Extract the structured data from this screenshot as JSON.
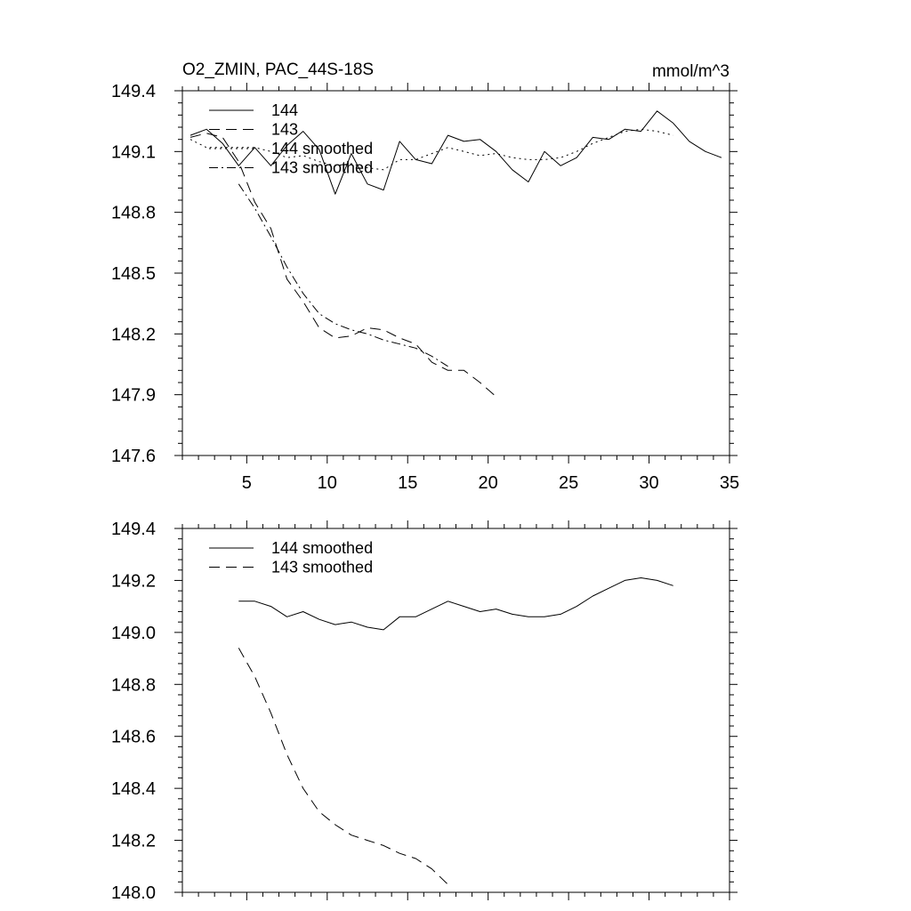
{
  "chart_data": [
    {
      "type": "line",
      "title": "O2_ZMIN, PAC_44S-18S",
      "units": "mmol/m^3",
      "xlim": [
        1,
        35
      ],
      "ylim": [
        147.6,
        149.4
      ],
      "x_ticks": [
        5,
        10,
        15,
        20,
        25,
        30,
        35
      ],
      "x_tick_labels": [
        "5",
        "10",
        "15",
        "20",
        "25",
        "30",
        "35"
      ],
      "y_ticks": [
        147.6,
        147.9,
        148.2,
        148.5,
        148.8,
        149.1,
        149.4
      ],
      "y_tick_labels": [
        "147.6",
        "147.9",
        "148.2",
        "148.5",
        "148.8",
        "149.1",
        "149.4"
      ],
      "legend_position": "top-left",
      "series": [
        {
          "name": "144",
          "style": "solid",
          "x": [
            1.5,
            2.5,
            3.5,
            4.5,
            5.5,
            6.5,
            7.5,
            8.5,
            9.5,
            10.5,
            11.5,
            12.5,
            13.5,
            14.5,
            15.5,
            16.5,
            17.5,
            18.5,
            19.5,
            20.5,
            21.5,
            22.5,
            23.5,
            24.5,
            25.5,
            26.5,
            27.5,
            28.5,
            29.5,
            30.5,
            31.5,
            32.5,
            33.5,
            34.5
          ],
          "values": [
            149.18,
            149.21,
            149.14,
            149.03,
            149.12,
            149.03,
            149.13,
            149.2,
            149.11,
            148.89,
            149.09,
            148.94,
            148.91,
            149.15,
            149.06,
            149.04,
            149.18,
            149.15,
            149.16,
            149.1,
            149.01,
            148.95,
            149.1,
            149.03,
            149.07,
            149.17,
            149.16,
            149.21,
            149.2,
            149.3,
            149.24,
            149.15,
            149.1,
            149.07
          ]
        },
        {
          "name": "143",
          "style": "dashed",
          "x": [
            1.5,
            2.5,
            3.5,
            4.5,
            5.5,
            6.5,
            7.5,
            8.5,
            9.5,
            10.5,
            11.5,
            12.5,
            13.5,
            14.5,
            15.5,
            16.5,
            17.5,
            18.5,
            19.5,
            20.5
          ],
          "values": [
            149.17,
            149.19,
            149.17,
            149.05,
            148.85,
            148.72,
            148.47,
            148.36,
            148.23,
            148.18,
            148.19,
            148.23,
            148.22,
            148.18,
            148.15,
            148.06,
            148.02,
            148.02,
            147.96,
            147.89
          ]
        },
        {
          "name": "144 smoothed",
          "style": "dotted",
          "x": [
            1.5,
            2.5,
            3.5,
            4.5,
            5.5,
            6.5,
            7.5,
            8.5,
            9.5,
            10.5,
            11.5,
            12.5,
            13.5,
            14.5,
            15.5,
            16.5,
            17.5,
            18.5,
            19.5,
            20.5,
            21.5,
            22.5,
            23.5,
            24.5,
            25.5,
            26.5,
            27.5,
            28.5,
            29.5,
            30.5,
            31.5
          ],
          "values": [
            149.16,
            149.12,
            149.12,
            149.12,
            149.12,
            149.1,
            149.07,
            149.08,
            149.05,
            149.03,
            149.04,
            149.02,
            149.01,
            149.06,
            149.06,
            149.09,
            149.12,
            149.1,
            149.08,
            149.09,
            149.07,
            149.06,
            149.06,
            149.07,
            149.1,
            149.14,
            149.17,
            149.2,
            149.21,
            149.2,
            149.18
          ]
        },
        {
          "name": "143 smoothed",
          "style": "dash-dot",
          "x": [
            4.5,
            5.5,
            6.5,
            7.5,
            8.5,
            9.5,
            10.5,
            11.5,
            12.5,
            13.5,
            14.5,
            15.5,
            16.5,
            17.5
          ],
          "values": [
            148.94,
            148.82,
            148.68,
            148.53,
            148.4,
            148.3,
            148.25,
            148.22,
            148.2,
            148.17,
            148.15,
            148.13,
            148.09,
            148.04
          ]
        }
      ]
    },
    {
      "type": "line",
      "title": "",
      "units": "",
      "xlim": [
        1,
        35
      ],
      "ylim": [
        148.0,
        149.4
      ],
      "x_ticks": [
        5,
        10,
        15,
        20,
        25,
        30,
        35
      ],
      "x_tick_labels": [],
      "y_ticks": [
        148.0,
        148.2,
        148.4,
        148.6,
        148.8,
        149.0,
        149.2,
        149.4
      ],
      "y_tick_labels": [
        "148.0",
        "148.2",
        "148.4",
        "148.6",
        "148.8",
        "149.0",
        "149.2",
        "149.4"
      ],
      "legend_position": "top-left",
      "series": [
        {
          "name": "144 smoothed",
          "style": "solid",
          "x": [
            4.5,
            5.5,
            6.5,
            7.5,
            8.5,
            9.5,
            10.5,
            11.5,
            12.5,
            13.5,
            14.5,
            15.5,
            16.5,
            17.5,
            18.5,
            19.5,
            20.5,
            21.5,
            22.5,
            23.5,
            24.5,
            25.5,
            26.5,
            27.5,
            28.5,
            29.5,
            30.5,
            31.5
          ],
          "values": [
            149.12,
            149.12,
            149.1,
            149.06,
            149.08,
            149.05,
            149.03,
            149.04,
            149.02,
            149.01,
            149.06,
            149.06,
            149.09,
            149.12,
            149.1,
            149.08,
            149.09,
            149.07,
            149.06,
            149.06,
            149.07,
            149.1,
            149.14,
            149.17,
            149.2,
            149.21,
            149.2,
            149.18
          ]
        },
        {
          "name": "143 smoothed",
          "style": "dashed",
          "x": [
            4.5,
            5.5,
            6.5,
            7.5,
            8.5,
            9.5,
            10.5,
            11.5,
            12.5,
            13.5,
            14.5,
            15.5,
            16.5,
            17.5
          ],
          "values": [
            148.94,
            148.83,
            148.69,
            148.53,
            148.4,
            148.31,
            148.26,
            148.22,
            148.2,
            148.18,
            148.15,
            148.13,
            148.09,
            148.03
          ]
        }
      ]
    }
  ]
}
